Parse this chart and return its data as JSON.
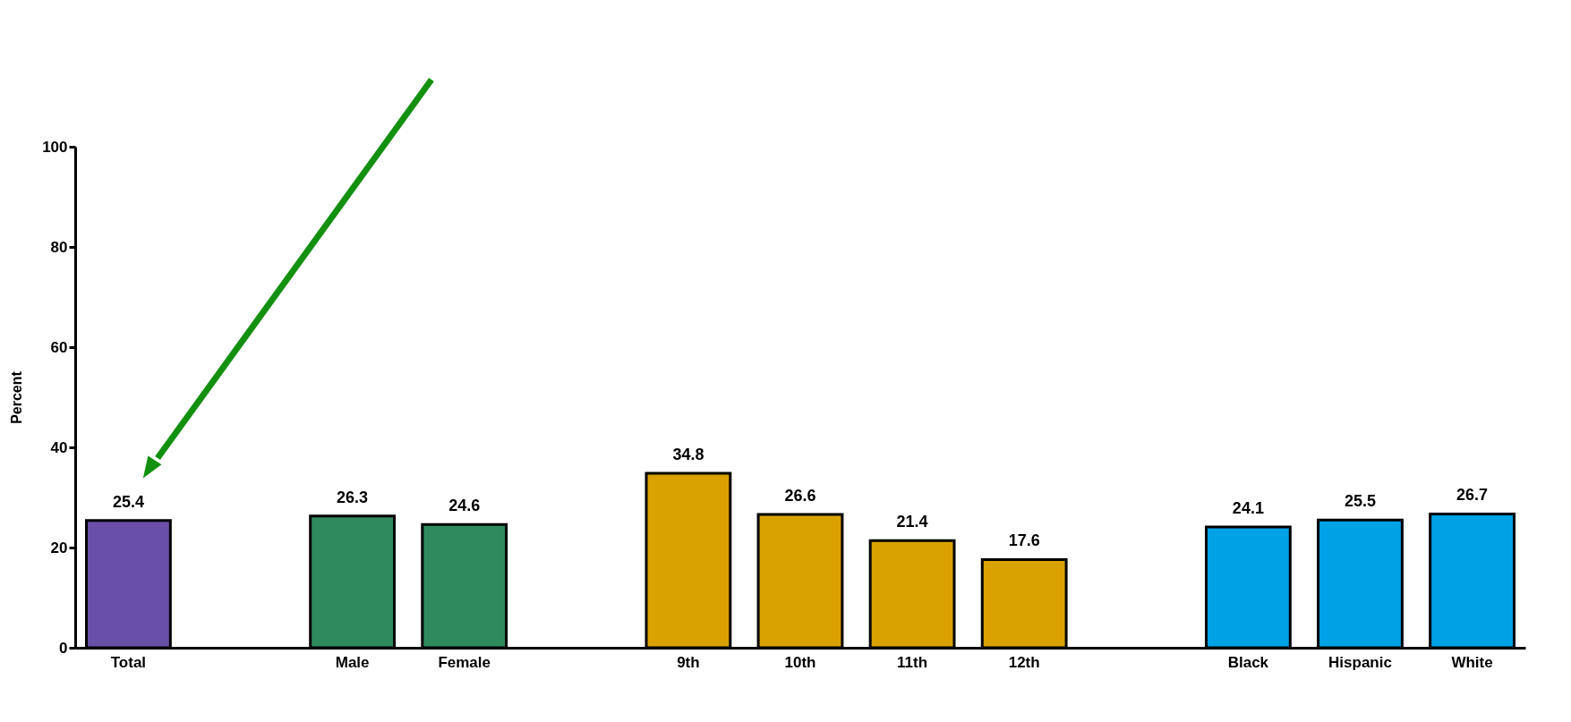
{
  "chart_data": {
    "type": "bar",
    "ylabel": "Percent",
    "categories": [
      "Total",
      null,
      "Male",
      "Female",
      null,
      "9th",
      "10th",
      "11th",
      "12th",
      null,
      "Black",
      "Hispanic",
      "White"
    ],
    "values": [
      25.4,
      null,
      26.3,
      24.6,
      null,
      34.8,
      26.6,
      21.4,
      17.6,
      null,
      24.1,
      25.5,
      26.7
    ],
    "colors": [
      "#6a4fa8",
      null,
      "#2e8a5c",
      "#2e8a5c",
      null,
      "#d9a200",
      "#d9a200",
      "#d9a200",
      "#d9a200",
      null,
      "#00a2e6",
      "#00a2e6",
      "#00a2e6"
    ],
    "ylim": [
      0,
      100
    ],
    "yticks": [
      0,
      20,
      40,
      60,
      80,
      100
    ],
    "grid": false,
    "data_labels": true
  }
}
